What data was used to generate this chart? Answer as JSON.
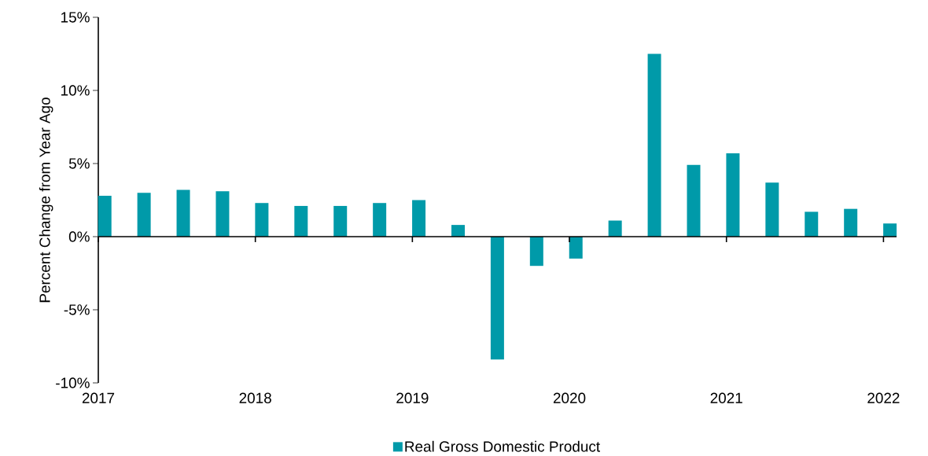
{
  "chart_data": {
    "type": "bar",
    "ylabel": "Percent Change from Year Ago",
    "x": [
      "2017-01-16",
      "2017-04-16",
      "2017-07-16",
      "2017-10-16",
      "2018-01-16",
      "2018-04-16",
      "2018-07-16",
      "2018-10-16",
      "2019-01-16",
      "2019-04-16",
      "2019-07-16",
      "2019-10-16",
      "2020-01-16",
      "2020-04-16",
      "2020-07-16",
      "2020-10-16",
      "2021-01-16",
      "2021-04-16",
      "2021-07-16",
      "2021-10-16",
      "2022-01-16"
    ],
    "series": [
      {
        "name": "Real Gross Domestic Product",
        "color": "#009aa9",
        "values": [
          2.8,
          3.0,
          3.2,
          3.1,
          2.3,
          2.1,
          2.1,
          2.3,
          2.5,
          0.8,
          -8.4,
          -2.0,
          -1.5,
          1.1,
          12.5,
          4.9,
          5.7,
          3.7,
          1.7,
          1.9,
          0.9
        ]
      }
    ],
    "xlim": [
      "2017",
      "2022-02"
    ],
    "xticks": [
      "2017",
      "2018",
      "2019",
      "2020",
      "2021",
      "2022"
    ],
    "ylim": [
      -10,
      15
    ],
    "yticks": [
      {
        "value": -10,
        "label": "-10%"
      },
      {
        "value": -5,
        "label": "-5%"
      },
      {
        "value": 0,
        "label": "0%"
      },
      {
        "value": 5,
        "label": "5%"
      },
      {
        "value": 10,
        "label": "10%"
      },
      {
        "value": 15,
        "label": "15%"
      }
    ],
    "legend": "bottom"
  }
}
